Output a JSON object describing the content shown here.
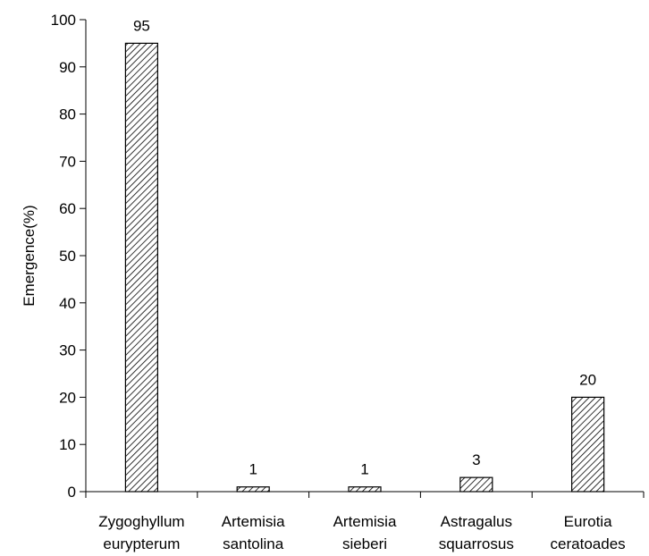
{
  "chart_data": {
    "type": "bar",
    "title": "",
    "xlabel": "",
    "ylabel": "Emergence(%)",
    "ylim": [
      0,
      100
    ],
    "yticks": [
      0,
      10,
      20,
      30,
      40,
      50,
      60,
      70,
      80,
      90,
      100
    ],
    "grid": false,
    "legend": "none",
    "categories": [
      [
        "Zygoghyllum",
        "eurypterum"
      ],
      [
        "Artemisia",
        "santolina"
      ],
      [
        "Artemisia",
        "sieberi"
      ],
      [
        "Astragalus",
        "squarrosus"
      ],
      [
        "Eurotia",
        "ceratoades"
      ]
    ],
    "values": [
      95,
      1,
      1,
      3,
      20
    ],
    "data_labels": [
      "95",
      "1",
      "1",
      "3",
      "20"
    ],
    "bar_fill": "diagonal-hatch",
    "bar_color": "#000000"
  }
}
